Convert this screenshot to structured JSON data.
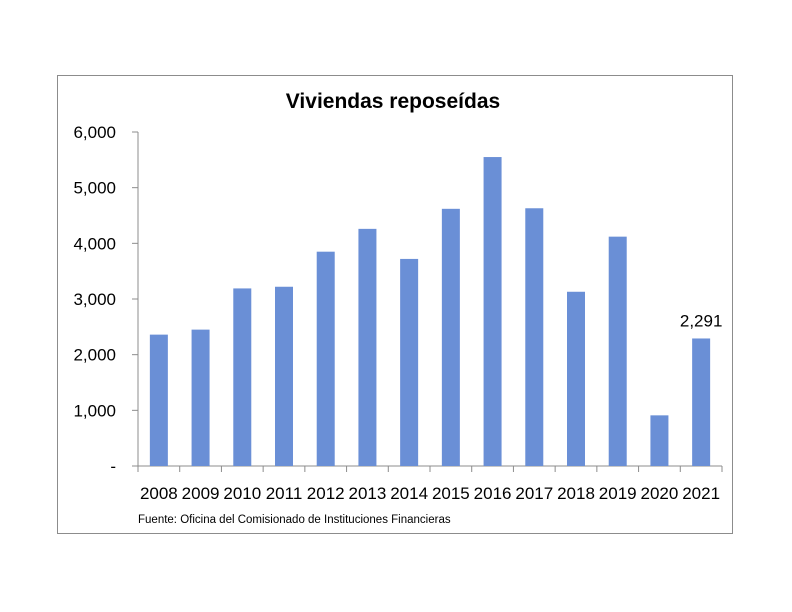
{
  "chart_data": {
    "type": "bar",
    "title": "Viviendas reposeídas",
    "xlabel": "",
    "ylabel": "",
    "categories": [
      "2008",
      "2009",
      "2010",
      "2011",
      "2012",
      "2013",
      "2014",
      "2015",
      "2016",
      "2017",
      "2018",
      "2019",
      "2020",
      "2021"
    ],
    "values": [
      2360,
      2450,
      3190,
      3220,
      3850,
      4260,
      3720,
      4620,
      5550,
      4630,
      3130,
      4120,
      910,
      2291
    ],
    "ylim": [
      0,
      6000
    ],
    "yticks": [
      0,
      1000,
      2000,
      3000,
      4000,
      5000,
      6000
    ],
    "ytick_labels": [
      "-",
      "1,000",
      "2,000",
      "3,000",
      "4,000",
      "5,000",
      "6,000"
    ],
    "data_labels": [
      {
        "category": "2021",
        "text": "2,291"
      }
    ],
    "bar_color": "#6A8FD6",
    "grid": false,
    "legend": "none",
    "source": "Fuente: Oficina del Comisionado de Instituciones Financieras"
  }
}
